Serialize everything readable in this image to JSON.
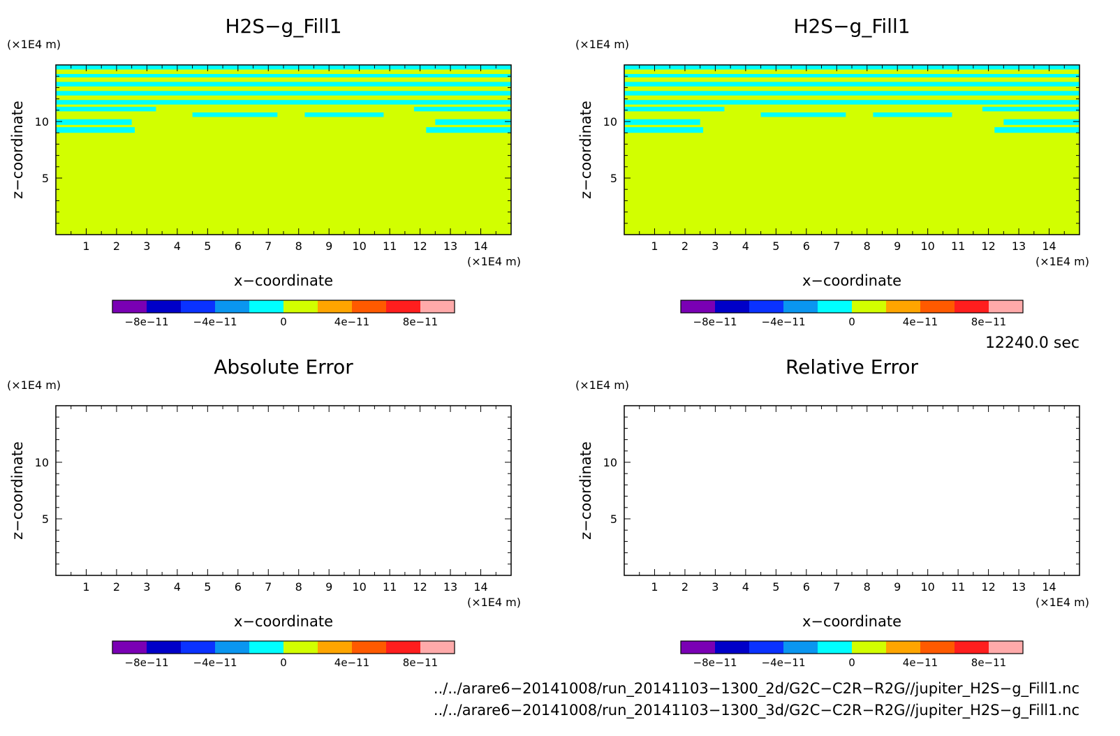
{
  "chart_data": [
    {
      "type": "heatmap",
      "title": "H2S−g_Fill1",
      "xlabel": "x−coordinate",
      "ylabel": "z−coordinate",
      "xunit": "(×1E4 m)",
      "zunit": "(×1E4 m)",
      "xlim": [
        0,
        15
      ],
      "zlim": [
        0,
        15
      ],
      "xticks": [
        1,
        2,
        3,
        4,
        5,
        6,
        7,
        8,
        9,
        10,
        11,
        12,
        13,
        14
      ],
      "zticks": [
        5,
        10
      ],
      "filled": true,
      "background_value": 1e-11,
      "bands": [
        {
          "z": [
            14.6,
            15.0
          ],
          "x": [
            0,
            15
          ],
          "value": -1e-11
        },
        {
          "z": [
            13.9,
            14.2
          ],
          "x": [
            0,
            15
          ],
          "value": -1e-11
        },
        {
          "z": [
            13.1,
            13.5
          ],
          "x": [
            0,
            15
          ],
          "value": -1e-11
        },
        {
          "z": [
            12.3,
            12.7
          ],
          "x": [
            0,
            15
          ],
          "value": -1e-11
        },
        {
          "z": [
            11.5,
            11.9
          ],
          "x": [
            0,
            15
          ],
          "value": -1e-11
        },
        {
          "z": [
            10.9,
            11.3
          ],
          "x": [
            0,
            3.3
          ],
          "value": -1e-11
        },
        {
          "z": [
            10.9,
            11.3
          ],
          "x": [
            11.8,
            15
          ],
          "value": -1e-11
        },
        {
          "z": [
            10.4,
            10.8
          ],
          "x": [
            4.5,
            7.3
          ],
          "value": -1e-11
        },
        {
          "z": [
            10.4,
            10.8
          ],
          "x": [
            8.2,
            10.8
          ],
          "value": -1e-11
        },
        {
          "z": [
            9.7,
            10.2
          ],
          "x": [
            0,
            2.5
          ],
          "value": -1e-11
        },
        {
          "z": [
            9.7,
            10.2
          ],
          "x": [
            12.5,
            15
          ],
          "value": -1e-11
        },
        {
          "z": [
            9.0,
            9.5
          ],
          "x": [
            0,
            2.6
          ],
          "value": -1e-11
        },
        {
          "z": [
            9.0,
            9.5
          ],
          "x": [
            12.2,
            15
          ],
          "value": -1e-11
        }
      ]
    },
    {
      "type": "heatmap",
      "title": "H2S−g_Fill1",
      "xlabel": "x−coordinate",
      "ylabel": "z−coordinate",
      "xunit": "(×1E4 m)",
      "zunit": "(×1E4 m)",
      "xlim": [
        0,
        15
      ],
      "zlim": [
        0,
        15
      ],
      "xticks": [
        1,
        2,
        3,
        4,
        5,
        6,
        7,
        8,
        9,
        10,
        11,
        12,
        13,
        14
      ],
      "zticks": [
        5,
        10
      ],
      "filled": true,
      "background_value": 1e-11,
      "bands": [
        {
          "z": [
            14.6,
            15.0
          ],
          "x": [
            0,
            15
          ],
          "value": -1e-11
        },
        {
          "z": [
            13.9,
            14.2
          ],
          "x": [
            0,
            15
          ],
          "value": -1e-11
        },
        {
          "z": [
            13.1,
            13.5
          ],
          "x": [
            0,
            15
          ],
          "value": -1e-11
        },
        {
          "z": [
            12.3,
            12.7
          ],
          "x": [
            0,
            15
          ],
          "value": -1e-11
        },
        {
          "z": [
            11.5,
            11.9
          ],
          "x": [
            0,
            15
          ],
          "value": -1e-11
        },
        {
          "z": [
            10.9,
            11.3
          ],
          "x": [
            0,
            3.3
          ],
          "value": -1e-11
        },
        {
          "z": [
            10.9,
            11.3
          ],
          "x": [
            11.8,
            15
          ],
          "value": -1e-11
        },
        {
          "z": [
            10.4,
            10.8
          ],
          "x": [
            4.5,
            7.3
          ],
          "value": -1e-11
        },
        {
          "z": [
            10.4,
            10.8
          ],
          "x": [
            8.2,
            10.8
          ],
          "value": -1e-11
        },
        {
          "z": [
            9.7,
            10.2
          ],
          "x": [
            0,
            2.5
          ],
          "value": -1e-11
        },
        {
          "z": [
            9.7,
            10.2
          ],
          "x": [
            12.5,
            15
          ],
          "value": -1e-11
        },
        {
          "z": [
            9.0,
            9.5
          ],
          "x": [
            0,
            2.6
          ],
          "value": -1e-11
        },
        {
          "z": [
            9.0,
            9.5
          ],
          "x": [
            12.2,
            15
          ],
          "value": -1e-11
        }
      ]
    },
    {
      "type": "heatmap",
      "title": "Absolute Error",
      "xlabel": "x−coordinate",
      "ylabel": "z−coordinate",
      "xunit": "(×1E4 m)",
      "zunit": "(×1E4 m)",
      "xlim": [
        0,
        15
      ],
      "zlim": [
        0,
        15
      ],
      "xticks": [
        1,
        2,
        3,
        4,
        5,
        6,
        7,
        8,
        9,
        10,
        11,
        12,
        13,
        14
      ],
      "zticks": [
        5,
        10
      ],
      "filled": false,
      "bands": []
    },
    {
      "type": "heatmap",
      "title": "Relative Error",
      "xlabel": "x−coordinate",
      "ylabel": "z−coordinate",
      "xunit": "(×1E4 m)",
      "zunit": "(×1E4 m)",
      "xlim": [
        0,
        15
      ],
      "zlim": [
        0,
        15
      ],
      "xticks": [
        1,
        2,
        3,
        4,
        5,
        6,
        7,
        8,
        9,
        10,
        11,
        12,
        13,
        14
      ],
      "zticks": [
        5,
        10
      ],
      "filled": false,
      "bands": []
    }
  ],
  "colorbar": {
    "colors": [
      "#7a00b4",
      "#0000c8",
      "#0a32ff",
      "#0a96f0",
      "#00ffff",
      "#d2ff00",
      "#ffa500",
      "#ff5a00",
      "#ff1e1e",
      "#ffaaaa"
    ],
    "bounds": [
      -1e-10,
      -8e-11,
      -6e-11,
      -4e-11,
      -2e-11,
      0,
      2e-11,
      4e-11,
      6e-11,
      8e-11,
      1e-10
    ],
    "tick_labels": [
      "−8e−11",
      "−4e−11",
      "0",
      "4e−11",
      "8e−11"
    ]
  },
  "time_label": "12240.0 sec",
  "footer": {
    "line1": "../../arare6−20141008/run_20141103−1300_2d/G2C−C2R−R2G//jupiter_H2S−g_Fill1.nc",
    "line2": "../../arare6−20141008/run_20141103−1300_3d/G2C−C2R−R2G//jupiter_H2S−g_Fill1.nc"
  }
}
